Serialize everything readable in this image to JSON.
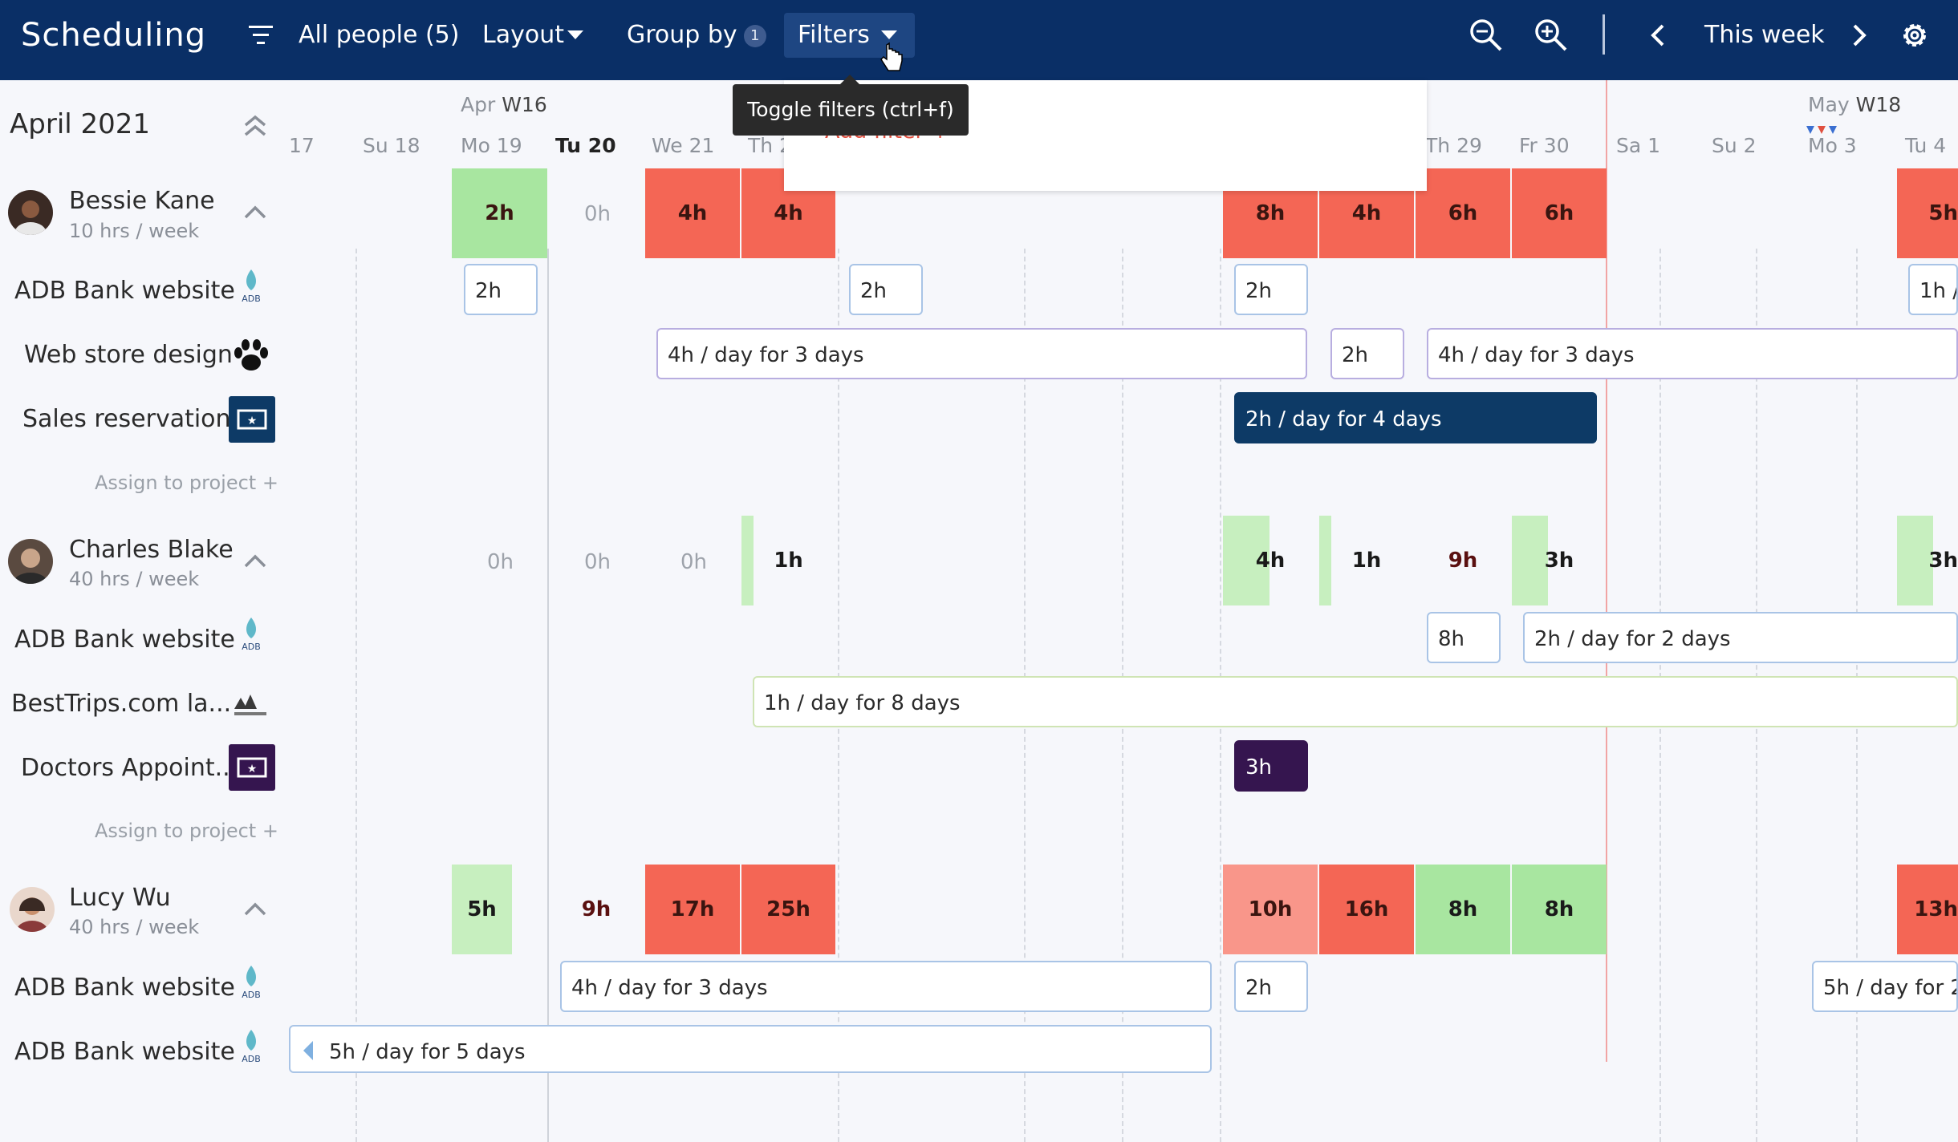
{
  "header": {
    "title": "Scheduling",
    "people_label": "All people (5)",
    "layout_label": "Layout",
    "group_by_label": "Group by",
    "group_by_count": "1",
    "filters_label": "Filters",
    "period_label": "This week",
    "colors": {
      "bar": "#0a2f66",
      "active": "#1e4682"
    }
  },
  "tooltip": {
    "text": "Toggle filters (ctrl+f)"
  },
  "filter_panel": {
    "add_filter": "Add filter +"
  },
  "sidebar": {
    "month": "April 2021",
    "people": [
      {
        "name": "Bessie Kane",
        "capacity": "10 hrs / week",
        "projects": [
          "ADB Bank website",
          "Web store design",
          "Sales reservation"
        ],
        "assign": "Assign to project +"
      },
      {
        "name": "Charles Blake",
        "capacity": "40 hrs / week",
        "projects": [
          "ADB Bank website",
          "BestTrips.com la...",
          "Doctors Appoint..."
        ],
        "assign": "Assign to project +"
      },
      {
        "name": "Lucy Wu",
        "capacity": "40 hrs / week",
        "projects": [
          "ADB Bank website",
          "ADB Bank website"
        ]
      }
    ]
  },
  "calendar": {
    "weeks": [
      {
        "month": "Apr",
        "week": "W16"
      },
      {
        "month": "May",
        "week": "W18"
      }
    ],
    "days": [
      "17",
      "Su 18",
      "Mo 19",
      "Tu 20",
      "We 21",
      "Th 2",
      "Th 29",
      "Fr 30",
      "Sa 1",
      "Su 2",
      "Mo 3",
      "Tu 4"
    ],
    "bessie_totals": [
      "2h",
      "0h",
      "4h",
      "4h",
      "8h",
      "4h",
      "6h",
      "6h",
      "5h"
    ],
    "bessie_adb": [
      "2h",
      "2h",
      "2h",
      "1h /"
    ],
    "bessie_web": [
      "4h / day for 3 days",
      "2h",
      "4h / day for 3 days"
    ],
    "bessie_sales": [
      "2h / day for 4 days"
    ],
    "charles_totals": [
      "0h",
      "0h",
      "0h",
      "1h",
      "4h",
      "1h",
      "9h",
      "3h",
      "3h"
    ],
    "charles_adb": [
      "8h",
      "2h / day for 2 days"
    ],
    "charles_best": [
      "1h / day for 8 days"
    ],
    "charles_doc": [
      "3h"
    ],
    "lucy_totals": [
      "5h",
      "9h",
      "17h",
      "25h",
      "10h",
      "16h",
      "8h",
      "8h",
      "13h"
    ],
    "lucy_adb1": [
      "4h / day for 3 days",
      "2h",
      "5h / day for 2"
    ],
    "lucy_adb2": [
      "5h / day for 5 days"
    ]
  }
}
